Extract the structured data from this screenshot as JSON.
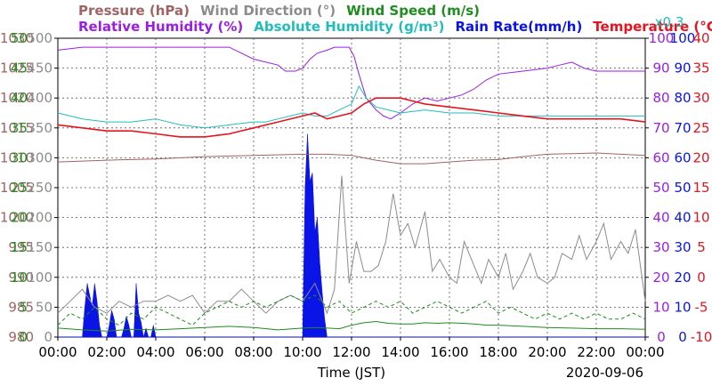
{
  "chart_data": {
    "type": "line",
    "legend_row1": [
      {
        "text": "Pressure (hPa)",
        "color": "#a06464"
      },
      {
        "text": "Wind Direction (°)",
        "color": "#8c8c8c"
      },
      {
        "text": "Wind Speed (m/s)",
        "color": "#1e8c1e"
      }
    ],
    "legend_row2": [
      {
        "text": "Relative Humidity (%)",
        "color": "#9b1ee6"
      },
      {
        "text": "Absolute Humidity (g/m³)",
        "color": "#22bcbc"
      },
      {
        "text": "Rain Rate(mm/h)",
        "color": "#0a14e6"
      },
      {
        "text": "Temperature (°C)",
        "color": "#e6141e"
      }
    ],
    "abs_humidity_scale_note": "x0.3",
    "xlabel": "Time (JST)",
    "date": "2020-09-06",
    "x_ticks": [
      "00:00",
      "02:00",
      "04:00",
      "06:00",
      "08:00",
      "10:00",
      "12:00",
      "14:00",
      "16:00",
      "18:00",
      "20:00",
      "22:00",
      "00:00"
    ],
    "axes": {
      "pressure": {
        "ticks": [
          "1030",
          "1025",
          "1020",
          "1015",
          "1010",
          "1005",
          "1000",
          "995",
          "990",
          "985",
          "980"
        ],
        "ylim": [
          980,
          1030
        ],
        "color": "#a06464"
      },
      "wind_direction": {
        "ticks": [
          "500",
          "450",
          "400",
          "350",
          "300",
          "250",
          "200",
          "150",
          "100",
          "50",
          "0"
        ],
        "ylim": [
          0,
          500
        ],
        "color": "#8c8c8c"
      },
      "wind_speed": {
        "ticks": [
          "50",
          "45",
          "40",
          "35",
          "30",
          "25",
          "20",
          "15",
          "10",
          "5",
          "0"
        ],
        "ylim": [
          0,
          50
        ],
        "color": "#1e8c1e"
      },
      "humidity": {
        "ticks": [
          "100",
          "90",
          "80",
          "70",
          "60",
          "50",
          "40",
          "30",
          "20",
          "10",
          "0"
        ],
        "ylim": [
          0,
          100
        ],
        "color": "#9b1ee6"
      },
      "rain_rate": {
        "ticks": [
          "100",
          "90",
          "80",
          "70",
          "60",
          "50",
          "40",
          "30",
          "20",
          "10",
          "0"
        ],
        "ylim": [
          0,
          100
        ],
        "color": "#0a14e6"
      },
      "temperature": {
        "ticks": [
          "40",
          "35",
          "30",
          "25",
          "20",
          "15",
          "10",
          "5",
          "0",
          "-5",
          "-10"
        ],
        "ylim": [
          -10,
          40
        ],
        "color": "#e6141e"
      }
    },
    "x_range_hours": [
      0,
      24
    ],
    "series": [
      {
        "key": "relative_humidity",
        "color": "#9b1ee6",
        "axis": "humidity",
        "x": [
          0,
          1,
          2,
          3,
          4,
          5,
          6,
          7,
          7.5,
          8,
          8.5,
          9,
          9.3,
          9.7,
          10,
          10.3,
          10.6,
          11,
          11.3,
          11.6,
          11.9,
          12.1,
          12.3,
          12.6,
          13,
          13.3,
          13.6,
          14,
          14.5,
          15,
          15.5,
          16,
          16.5,
          17,
          17.5,
          18,
          19,
          20,
          20.5,
          21,
          21.5,
          22,
          22.5,
          23,
          23.5,
          24
        ],
        "y": [
          96,
          97,
          97,
          97,
          97,
          97,
          97,
          97,
          95,
          93,
          92,
          91,
          89,
          89,
          90,
          93,
          95,
          96,
          97,
          97,
          97,
          94,
          88,
          80,
          76,
          74,
          73,
          75,
          78,
          80,
          79,
          80,
          81,
          83,
          86,
          88,
          89,
          90,
          91,
          92,
          90,
          89,
          89,
          89,
          89,
          89
        ]
      },
      {
        "key": "absolute_humidity",
        "color": "#22bcbc",
        "axis": "humidity",
        "x": [
          0,
          1,
          2,
          3,
          4,
          5,
          6,
          7,
          8,
          8.5,
          9,
          9.5,
          10,
          10.5,
          11,
          11.5,
          12,
          12.3,
          12.6,
          13,
          13.5,
          14,
          15,
          16,
          17,
          18,
          19,
          20,
          21,
          22,
          23,
          24
        ],
        "y": [
          75,
          73,
          72,
          72,
          73,
          71,
          70,
          71,
          72,
          72,
          73,
          74,
          75,
          74,
          74,
          76,
          78,
          84,
          80,
          77,
          76,
          75,
          76,
          75,
          75,
          74,
          74,
          74,
          74,
          74,
          74,
          74
        ]
      },
      {
        "key": "temperature",
        "color": "#e6141e",
        "axis": "temperature",
        "x": [
          0,
          1,
          2,
          3,
          4,
          5,
          6,
          7,
          8,
          9,
          10,
          10.5,
          11,
          11.5,
          12,
          12.5,
          13,
          13.5,
          14,
          14.5,
          15,
          16,
          17,
          18,
          19,
          20,
          21,
          22,
          23,
          24
        ],
        "y": [
          25.5,
          25,
          24.5,
          24.5,
          24,
          23.5,
          23.5,
          24,
          25,
          26,
          27,
          27.5,
          26.5,
          27,
          27.5,
          29,
          30,
          30,
          30,
          29.5,
          29,
          28.5,
          28,
          27.5,
          27,
          26.5,
          26.5,
          26.5,
          26.5,
          26
        ]
      },
      {
        "key": "pressure",
        "color": "#a06464",
        "axis": "pressure",
        "x": [
          0,
          2,
          4,
          6,
          8,
          10,
          11,
          12,
          13,
          14,
          15,
          16,
          17,
          18,
          19,
          20,
          21,
          22,
          23,
          24
        ],
        "y": [
          1009.3,
          1009.6,
          1009.8,
          1010.2,
          1010.4,
          1010.6,
          1010.6,
          1010.4,
          1009.6,
          1009.0,
          1009.0,
          1009.3,
          1009.6,
          1009.7,
          1010.2,
          1010.6,
          1010.7,
          1010.8,
          1010.6,
          1010.4
        ]
      },
      {
        "key": "wind_direction",
        "color": "#8c8c8c",
        "axis": "wind_direction",
        "x": [
          0,
          0.5,
          1,
          1.5,
          2,
          2.5,
          3,
          3.5,
          4,
          4.5,
          5,
          5.5,
          6,
          6.5,
          7,
          7.5,
          8,
          8.5,
          9,
          9.5,
          10,
          10.5,
          11,
          11.3,
          11.6,
          11.9,
          12.2,
          12.5,
          12.8,
          13.1,
          13.4,
          13.7,
          14,
          14.3,
          14.6,
          15,
          15.3,
          15.6,
          16,
          16.3,
          16.6,
          17,
          17.3,
          17.6,
          18,
          18.3,
          18.6,
          19,
          19.3,
          19.6,
          20,
          20.3,
          20.6,
          21,
          21.3,
          21.6,
          22,
          22.3,
          22.6,
          23,
          23.3,
          23.6,
          24
        ],
        "y": [
          40,
          60,
          80,
          50,
          40,
          60,
          50,
          60,
          60,
          70,
          60,
          70,
          40,
          60,
          60,
          80,
          60,
          40,
          60,
          70,
          60,
          90,
          40,
          80,
          270,
          90,
          160,
          110,
          110,
          120,
          160,
          240,
          170,
          190,
          150,
          210,
          110,
          130,
          100,
          90,
          160,
          120,
          90,
          130,
          100,
          140,
          80,
          110,
          140,
          100,
          90,
          100,
          140,
          130,
          170,
          130,
          160,
          190,
          130,
          160,
          140,
          180,
          60
        ]
      },
      {
        "key": "wind_speed",
        "color": "#1e8c1e",
        "axis": "wind_speed",
        "x": [
          0,
          1,
          2,
          3,
          4,
          5,
          6,
          7,
          8,
          9,
          10,
          10.5,
          11,
          11.5,
          12,
          12.5,
          13,
          13.5,
          14,
          14.5,
          15,
          15.5,
          16,
          16.5,
          17,
          17.5,
          18,
          19,
          20,
          21,
          22,
          23,
          24
        ],
        "y": [
          1.5,
          1.2,
          1.0,
          1.3,
          1.2,
          1.4,
          1.6,
          1.8,
          1.6,
          1.2,
          1.5,
          1.6,
          1.5,
          1.4,
          2.0,
          2.4,
          2.6,
          2.3,
          2.2,
          2.2,
          2.4,
          2.3,
          2.4,
          2.3,
          2.2,
          2.0,
          2.0,
          1.8,
          1.6,
          1.5,
          1.4,
          1.4,
          1.3
        ]
      },
      {
        "key": "wind_speed_gust",
        "color": "#1e8c1e",
        "axis": "wind_speed",
        "x": [
          0,
          0.5,
          1,
          1.5,
          2,
          2.5,
          3,
          3.5,
          4,
          4.5,
          5,
          5.5,
          6,
          6.5,
          7,
          7.5,
          8,
          8.5,
          9,
          9.5,
          10,
          10.5,
          11,
          11.5,
          12,
          12.5,
          13,
          13.5,
          14,
          14.5,
          15,
          15.5,
          16,
          16.5,
          17,
          17.5,
          18,
          18.5,
          19,
          19.5,
          20,
          20.5,
          21,
          21.5,
          22,
          22.5,
          23,
          23.5,
          24
        ],
        "y": [
          2,
          4,
          3,
          5,
          3,
          2,
          4,
          3,
          5,
          4,
          3,
          2,
          4,
          5,
          6,
          5,
          6,
          5,
          6,
          7,
          6,
          7,
          5,
          6,
          4,
          5,
          6,
          5,
          6,
          4,
          5,
          6,
          5,
          4,
          5,
          6,
          4,
          5,
          4,
          3,
          4,
          3,
          4,
          3,
          4,
          3,
          3,
          4,
          3
        ]
      },
      {
        "key": "rain_rate",
        "color": "#0a14e6",
        "axis": "rain_rate",
        "x": [
          0,
          1.0,
          1.1,
          1.2,
          1.3,
          1.4,
          1.5,
          1.6,
          1.7,
          1.8,
          1.9,
          2.0,
          2.1,
          2.2,
          2.3,
          2.4,
          2.5,
          2.6,
          2.7,
          2.8,
          2.9,
          3.0,
          3.1,
          3.2,
          3.3,
          3.4,
          3.5,
          3.6,
          3.7,
          3.8,
          3.9,
          4.0,
          4.1,
          10.0,
          10.1,
          10.2,
          10.3,
          10.4,
          10.5,
          10.6,
          10.7,
          10.8,
          10.9,
          11.0,
          11.1,
          11.2,
          24
        ],
        "y": [
          0,
          0,
          10,
          18,
          14,
          10,
          18,
          12,
          4,
          0,
          0,
          0,
          4,
          9,
          6,
          0,
          0,
          0,
          3,
          7,
          4,
          0,
          0,
          18,
          8,
          5,
          0,
          3,
          0,
          0,
          4,
          0,
          0,
          0,
          50,
          68,
          52,
          55,
          35,
          40,
          25,
          15,
          6,
          0,
          0,
          0,
          0
        ]
      }
    ]
  }
}
